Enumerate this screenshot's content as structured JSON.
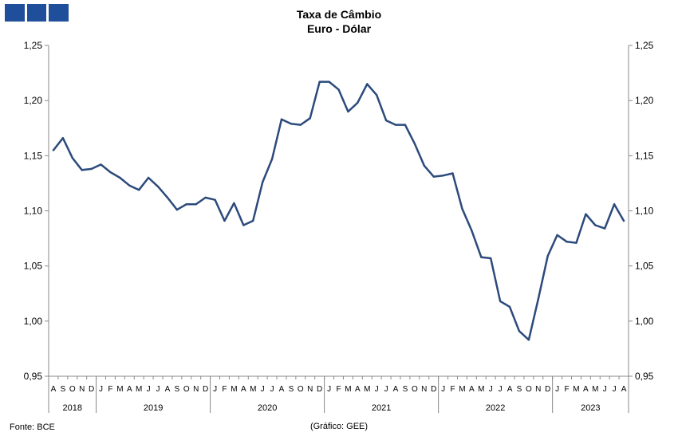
{
  "header": {
    "title": "Taxa de Câmbio",
    "subtitle": "Euro - Dólar"
  },
  "footer": {
    "source": "Fonte: BCE",
    "credit": "(Gráfico: GEE)"
  },
  "chart_data": {
    "type": "line",
    "title": "Taxa de Câmbio",
    "subtitle": "Euro - Dólar",
    "y_axes": "left and right (duplicate)",
    "ylim": [
      0.95,
      1.25
    ],
    "yticks": [
      "0,95",
      "1,00",
      "1,05",
      "1,10",
      "1,15",
      "1,20",
      "1,25"
    ],
    "ytick_values": [
      0.95,
      1.0,
      1.05,
      1.1,
      1.15,
      1.2,
      1.25
    ],
    "grid": false,
    "line_color": "#2c4a7c",
    "month_labels": [
      "A",
      "S",
      "O",
      "N",
      "D",
      "J",
      "F",
      "M",
      "A",
      "M",
      "J",
      "J",
      "A",
      "S",
      "O",
      "N",
      "D",
      "J",
      "F",
      "M",
      "A",
      "M",
      "J",
      "J",
      "A",
      "S",
      "O",
      "N",
      "D",
      "J",
      "F",
      "M",
      "A",
      "M",
      "J",
      "J",
      "A",
      "S",
      "O",
      "N",
      "D",
      "J",
      "F",
      "M",
      "A",
      "M",
      "J",
      "J",
      "A",
      "S",
      "O",
      "N",
      "D",
      "J",
      "F",
      "M",
      "A",
      "M",
      "J",
      "J",
      "A"
    ],
    "years": [
      {
        "label": "2018",
        "months": 5
      },
      {
        "label": "2019",
        "months": 12
      },
      {
        "label": "2020",
        "months": 12
      },
      {
        "label": "2021",
        "months": 12
      },
      {
        "label": "2022",
        "months": 12
      },
      {
        "label": "2023",
        "months": 8
      }
    ],
    "values": [
      1.155,
      1.166,
      1.148,
      1.137,
      1.138,
      1.142,
      1.135,
      1.13,
      1.123,
      1.119,
      1.13,
      1.122,
      1.112,
      1.101,
      1.106,
      1.106,
      1.112,
      1.11,
      1.091,
      1.107,
      1.087,
      1.091,
      1.126,
      1.147,
      1.183,
      1.179,
      1.178,
      1.184,
      1.217,
      1.217,
      1.21,
      1.19,
      1.198,
      1.215,
      1.205,
      1.182,
      1.178,
      1.178,
      1.161,
      1.141,
      1.131,
      1.132,
      1.134,
      1.102,
      1.082,
      1.058,
      1.057,
      1.018,
      1.013,
      0.991,
      0.983,
      1.02,
      1.059,
      1.078,
      1.072,
      1.071,
      1.097,
      1.087,
      1.084,
      1.106,
      1.091
    ]
  }
}
